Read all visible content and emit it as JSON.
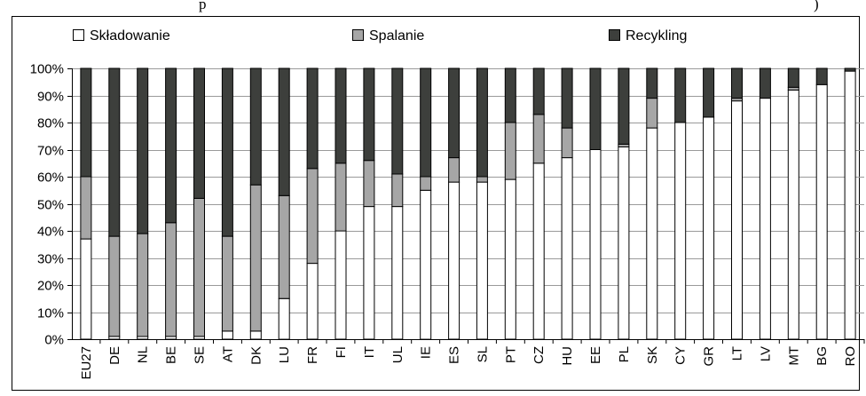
{
  "title_fragment_left": "p",
  "title_fragment_right": ")",
  "chart_data": {
    "type": "bar",
    "stacked": true,
    "categories": [
      "EU27",
      "DE",
      "NL",
      "BE",
      "SE",
      "AT",
      "DK",
      "LU",
      "FR",
      "FI",
      "IT",
      "UL",
      "IE",
      "ES",
      "SL",
      "PT",
      "CZ",
      "HU",
      "EE",
      "PL",
      "SK",
      "CY",
      "GR",
      "LT",
      "LV",
      "MT",
      "BG",
      "RO"
    ],
    "series": [
      {
        "name": "Składowanie",
        "color": "#ffffff",
        "values": [
          37,
          1,
          1,
          1,
          1,
          3,
          3,
          15,
          28,
          40,
          49,
          49,
          55,
          58,
          58,
          59,
          65,
          67,
          70,
          71,
          78,
          80,
          82,
          88,
          89,
          92,
          94,
          99
        ]
      },
      {
        "name": "Spalanie",
        "color": "#a6a6a6",
        "values": [
          23,
          37,
          38,
          42,
          51,
          35,
          54,
          38,
          35,
          25,
          17,
          12,
          5,
          9,
          2,
          21,
          18,
          11,
          0,
          1,
          11,
          0,
          0,
          1,
          0,
          1,
          0,
          0
        ]
      },
      {
        "name": "Recykling",
        "color": "#3d3f3c",
        "values": [
          40,
          62,
          61,
          57,
          48,
          62,
          43,
          47,
          37,
          35,
          34,
          39,
          40,
          33,
          40,
          20,
          17,
          22,
          30,
          28,
          11,
          20,
          18,
          11,
          11,
          7,
          6,
          1
        ]
      }
    ],
    "y_ticks": [
      "0%",
      "10%",
      "20%",
      "30%",
      "40%",
      "50%",
      "60%",
      "70%",
      "80%",
      "90%",
      "100%"
    ],
    "ylim": [
      0,
      100
    ],
    "grid": true,
    "legend_placement": "top"
  }
}
